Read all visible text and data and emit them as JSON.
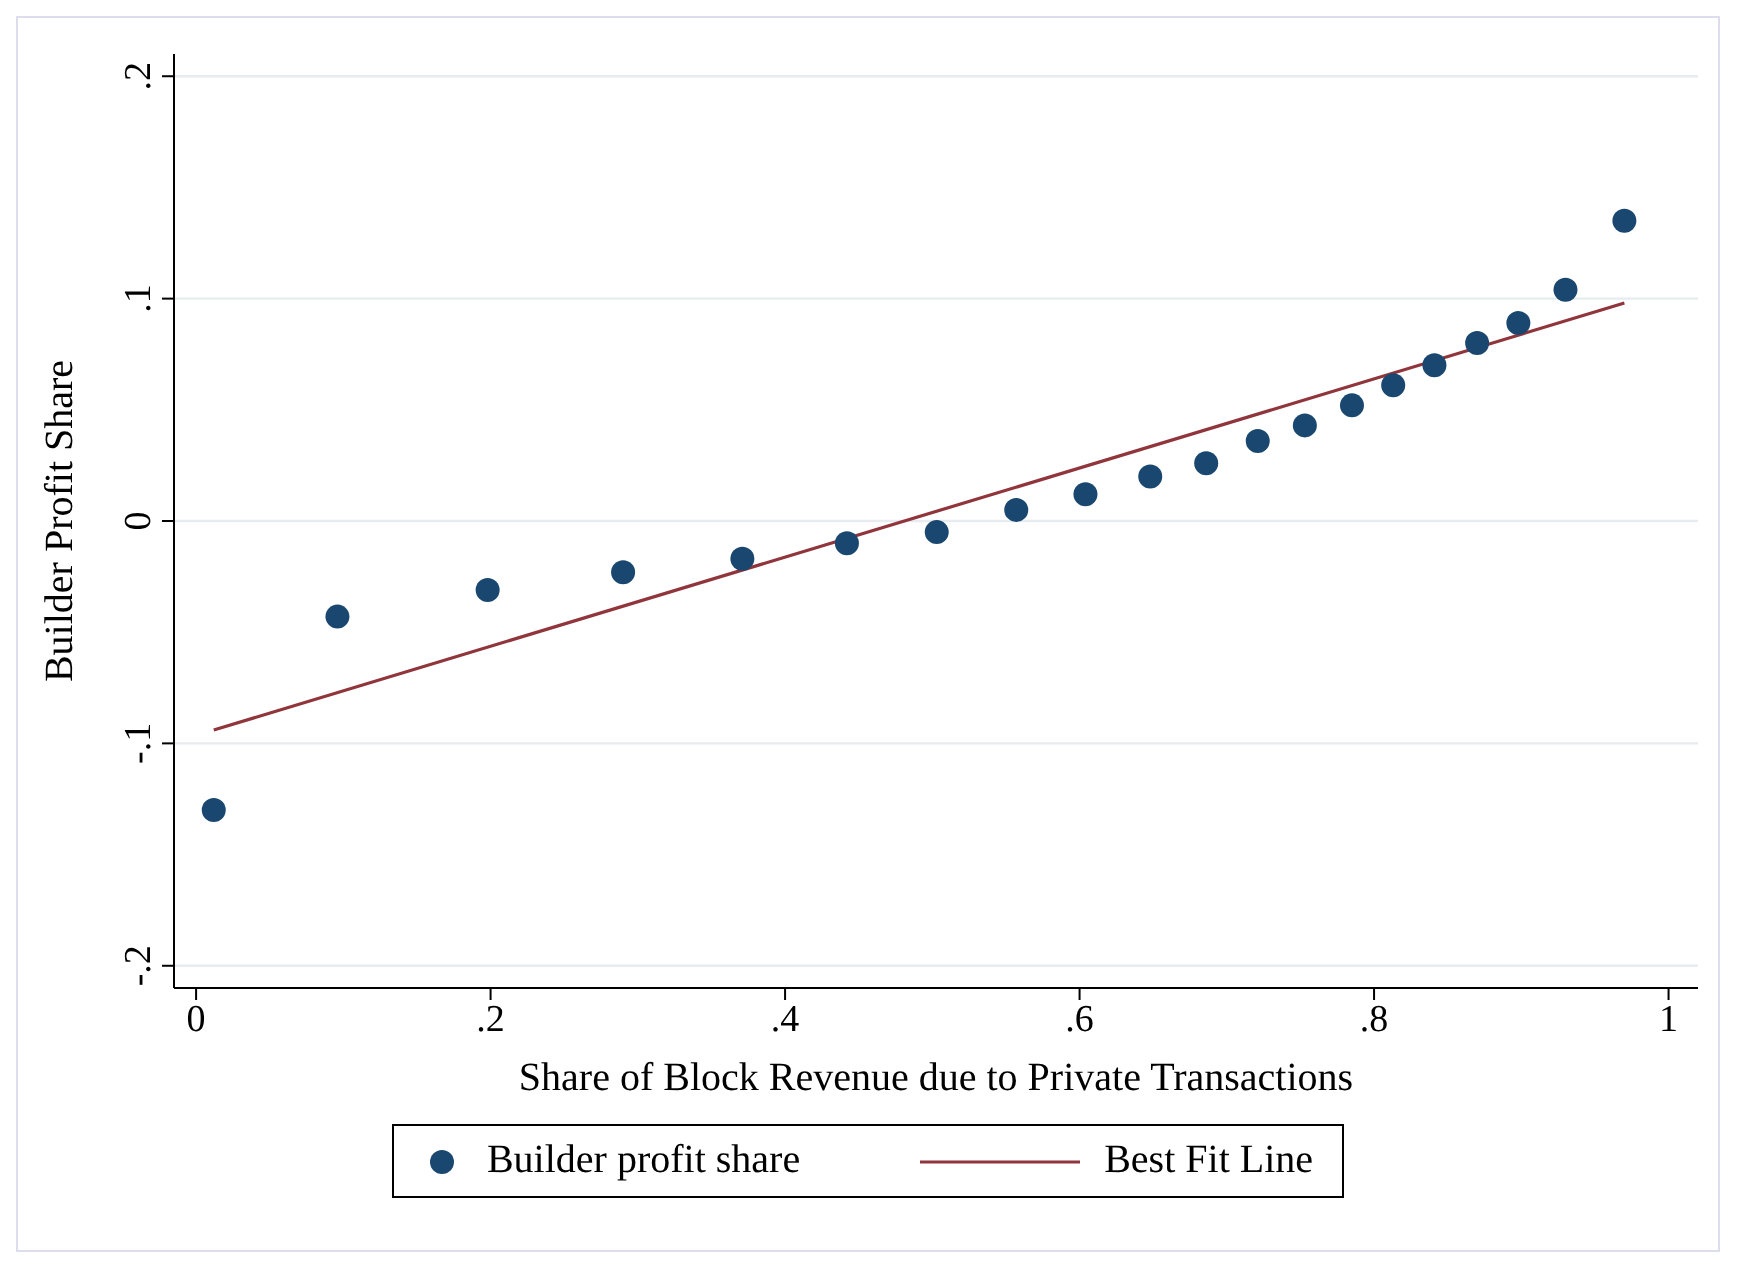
{
  "chart_data": {
    "type": "scatter",
    "xlabel": "Share of Block Revenue due to Private Transactions",
    "ylabel": "Builder Profit Share",
    "xlim": [
      -0.015,
      1.02
    ],
    "ylim": [
      -0.21,
      0.21
    ],
    "xticks": [
      0,
      {
        "value": 0.2,
        "label": ".2"
      },
      {
        "value": 0.4,
        "label": ".4"
      },
      {
        "value": 0.6,
        "label": ".6"
      },
      {
        "value": 0.8,
        "label": ".8"
      },
      1
    ],
    "yticks": [
      {
        "value": -0.2,
        "label": "-.2"
      },
      {
        "value": -0.1,
        "label": "-.1"
      },
      0,
      {
        "value": 0.1,
        "label": ".1"
      },
      {
        "value": 0.2,
        "label": ".2"
      }
    ],
    "grid": "y",
    "legend": "bottom",
    "series": [
      {
        "name": "Builder profit share",
        "marker": "circle",
        "color": "#1a476f",
        "x": [
          0.012,
          0.096,
          0.198,
          0.29,
          0.371,
          0.442,
          0.503,
          0.557,
          0.604,
          0.648,
          0.686,
          0.721,
          0.753,
          0.785,
          0.813,
          0.841,
          0.87,
          0.898,
          0.93,
          0.97
        ],
        "values": [
          -0.13,
          -0.043,
          -0.031,
          -0.023,
          -0.017,
          -0.01,
          -0.005,
          0.005,
          0.012,
          0.02,
          0.026,
          0.036,
          0.043,
          0.052,
          0.061,
          0.07,
          0.08,
          0.089,
          0.104,
          0.135
        ]
      },
      {
        "name": "Best Fit Line",
        "type": "line",
        "color": "#90353b",
        "line_style": "solid",
        "x": [
          0.012,
          0.97
        ],
        "values": [
          -0.094,
          0.098
        ]
      }
    ]
  }
}
